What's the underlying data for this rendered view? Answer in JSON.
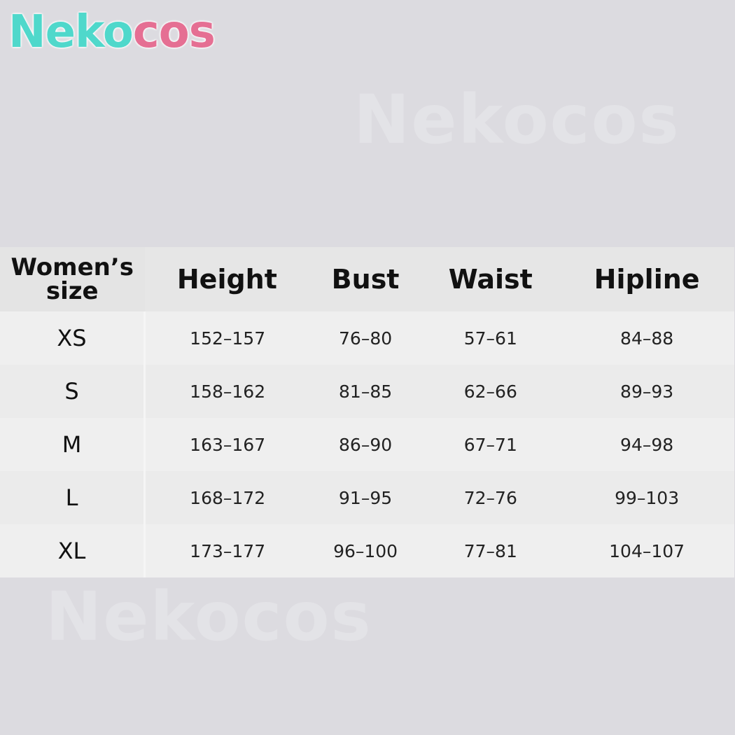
{
  "brand": {
    "logo_part1": "Neko",
    "logo_part2": "cos",
    "watermark": "Nekocos",
    "colors": {
      "teal": "#4fd8cb",
      "pink": "#e56f93"
    }
  },
  "table": {
    "headers": [
      "Women’s size",
      "Height",
      "Bust",
      "Waist",
      "Hipline"
    ],
    "rows": [
      {
        "size": "XS",
        "height": "152–157",
        "bust": "76–80",
        "waist": "57–61",
        "hipline": "84–88"
      },
      {
        "size": "S",
        "height": "158–162",
        "bust": "81–85",
        "waist": "62–66",
        "hipline": "89–93"
      },
      {
        "size": "M",
        "height": "163–167",
        "bust": "86–90",
        "waist": "67–71",
        "hipline": "94–98"
      },
      {
        "size": "L",
        "height": "168–172",
        "bust": "91–95",
        "waist": "72–76",
        "hipline": "99–103"
      },
      {
        "size": "XL",
        "height": "173–177",
        "bust": "96–100",
        "waist": "77–81",
        "hipline": "104–107"
      }
    ]
  }
}
